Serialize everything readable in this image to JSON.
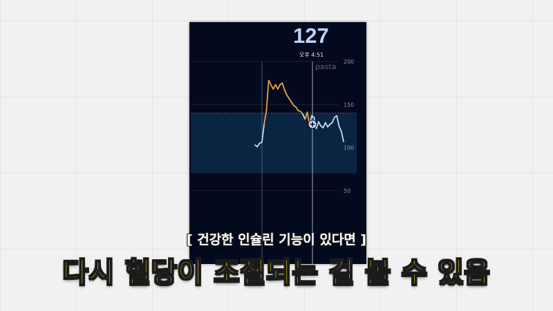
{
  "reading": {
    "value": "127",
    "time": "오후 4:51"
  },
  "chart_data": {
    "type": "line",
    "ylim": [
      0,
      200
    ],
    "yticks": [
      200,
      150,
      100,
      50
    ],
    "target_range": [
      70,
      140
    ],
    "annotation": "pasta",
    "high_threshold": 140,
    "colors": {
      "normal": "#c7dcf7",
      "high": "#f0a044",
      "range": "#0c2a48",
      "background": "#040a1e"
    },
    "series": [
      {
        "values": [
          103,
          101,
          105,
          106,
          127,
          143,
          178,
          173,
          168,
          173,
          168,
          173,
          175,
          167,
          161,
          157,
          153,
          149,
          147,
          143,
          142,
          139,
          133,
          141,
          127,
          137,
          135,
          122,
          130,
          125,
          123,
          129,
          124,
          127,
          129,
          135,
          137,
          125,
          119,
          107
        ]
      }
    ],
    "marker_index": 24
  },
  "subtitle": {
    "line1": "[ 건강한 인슐린 기능이 있다면 ]",
    "line2": "다시 혈당이 조절되는 걸 볼 수 있음"
  }
}
